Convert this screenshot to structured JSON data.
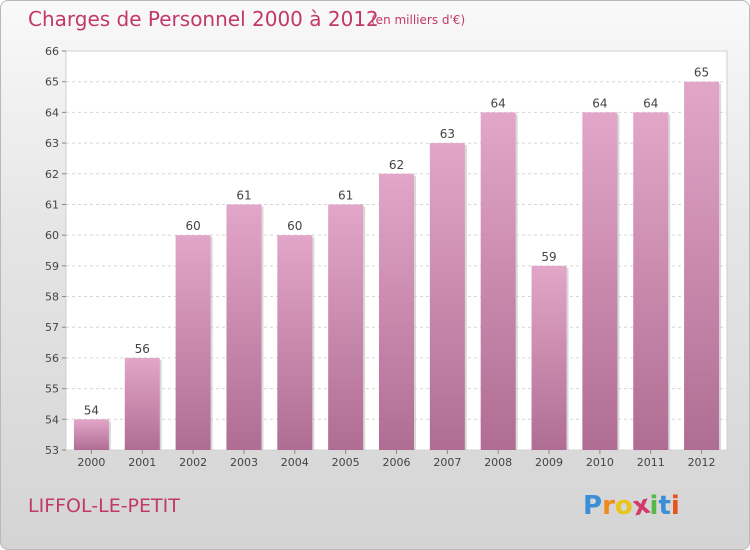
{
  "header": {
    "title": "Charges de Personnel 2000 à 2012",
    "subtitle": "(en milliers d'€)"
  },
  "footer": {
    "commune": "LIFFOL-LE-PETIT",
    "logo_letters": [
      "P",
      "r",
      "o",
      "x",
      "i",
      "t",
      "i"
    ]
  },
  "colors": {
    "title": "#c2386b",
    "bar_top": "#e2a6c8",
    "bar_bottom": "#b06d93",
    "logo": [
      "#3a8fd6",
      "#f08a1c",
      "#e8c51a",
      "#d23a6a",
      "#58b848",
      "#3a8fd6",
      "#e8531a"
    ]
  },
  "chart_data": {
    "type": "bar",
    "categories": [
      "2000",
      "2001",
      "2002",
      "2003",
      "2004",
      "2005",
      "2006",
      "2007",
      "2008",
      "2009",
      "2010",
      "2011",
      "2012"
    ],
    "values": [
      54,
      56,
      60,
      61,
      60,
      61,
      62,
      63,
      64,
      59,
      64,
      64,
      65
    ],
    "data_labels": [
      "54",
      "56",
      "60",
      "61",
      "60",
      "61",
      "62",
      "63",
      "64",
      "59",
      "64",
      "64",
      "65"
    ],
    "yticks": [
      "53",
      "54",
      "55",
      "56",
      "57",
      "58",
      "59",
      "60",
      "61",
      "62",
      "63",
      "64",
      "65",
      "66"
    ],
    "ylim": [
      53,
      66
    ],
    "grid": true,
    "legend": "none"
  }
}
